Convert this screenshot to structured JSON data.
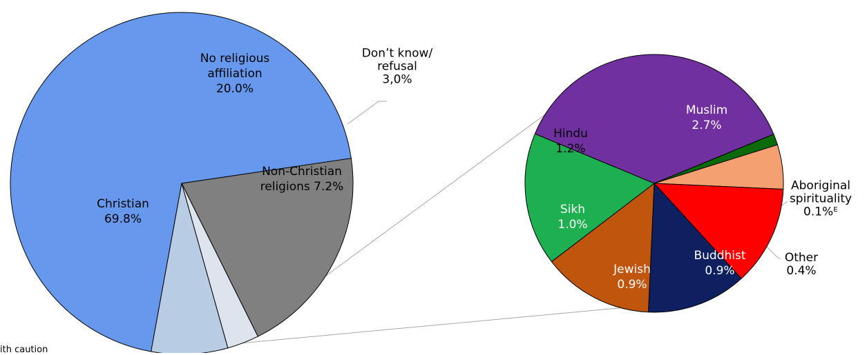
{
  "chart_data": [
    {
      "type": "pie",
      "slices": [
        {
          "label_lines": [
            "Christian",
            "69.8%"
          ],
          "value": 69.8,
          "color": "#6699ee"
        },
        {
          "label_lines": [
            "No religious",
            "affiliation",
            "20.0%"
          ],
          "value": 20.0,
          "color": "#808080"
        },
        {
          "label_lines": [
            "Don’t know/",
            "refusal",
            "3,0%"
          ],
          "value": 3.0,
          "color": "#dde4ee"
        },
        {
          "label_lines": [
            "Non-Christian",
            "religions 7.2%"
          ],
          "value": 7.2,
          "color": "#b8cce4"
        }
      ]
    },
    {
      "type": "pie",
      "slices": [
        {
          "label_lines": [
            "Muslim",
            "2.7%"
          ],
          "value": 2.7,
          "color": "#7030a0"
        },
        {
          "label_lines": [
            "Aboriginal",
            "spirituality",
            "0.1%ᴱ"
          ],
          "value": 0.1,
          "color": "#0b6b0b"
        },
        {
          "label_lines": [
            "Other",
            "0.4%"
          ],
          "value": 0.4,
          "color": "#f4a070"
        },
        {
          "label_lines": [
            "Buddhist",
            "0.9%"
          ],
          "value": 0.9,
          "color": "#ff0000"
        },
        {
          "label_lines": [
            "Jewish",
            "0.9%"
          ],
          "value": 0.9,
          "color": "#0f2060"
        },
        {
          "label_lines": [
            "Sikh",
            "1.0%"
          ],
          "value": 1.0,
          "color": "#c0550e"
        },
        {
          "label_lines": [
            "Hindu",
            "1.2%"
          ],
          "value": 1.2,
          "color": "#1eb050"
        }
      ]
    }
  ],
  "footnote": "ith caution"
}
